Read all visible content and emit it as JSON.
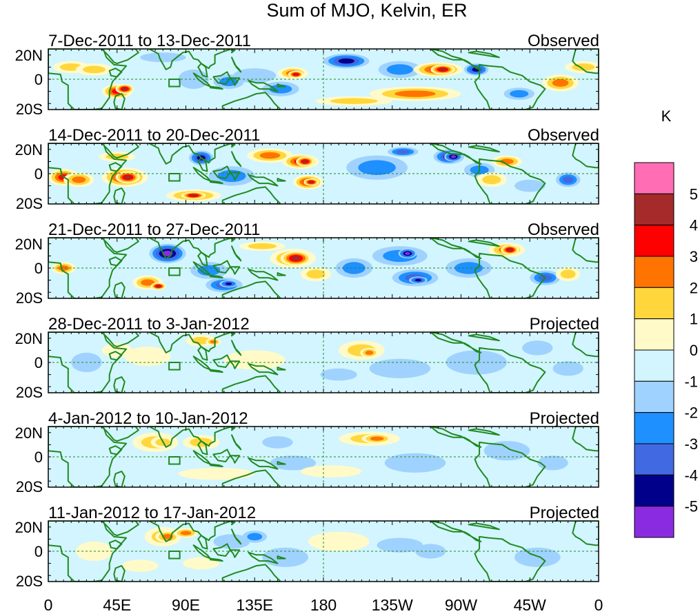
{
  "title": "Sum of MJO, Kelvin, ER",
  "colorbar": {
    "unit": "K",
    "bins": [
      {
        "color": "#ff6eb4"
      },
      {
        "color": "#a52a2a"
      },
      {
        "color": "#ff0000"
      },
      {
        "color": "#ff7400"
      },
      {
        "color": "#ffd73c"
      },
      {
        "color": "#fffac8"
      },
      {
        "color": "#d2f5ff"
      },
      {
        "color": "#a0d2ff"
      },
      {
        "color": "#1e90ff"
      },
      {
        "color": "#4169e1"
      },
      {
        "color": "#00008b"
      },
      {
        "color": "#8a2be2"
      }
    ],
    "labels": [
      "5",
      "4",
      "3",
      "2",
      "1",
      "0",
      "-1",
      "-2",
      "-3",
      "-4",
      "-5"
    ]
  },
  "y_ticks": [
    "20N",
    "0",
    "20S"
  ],
  "x_ticks": [
    "0",
    "45E",
    "90E",
    "135E",
    "180",
    "135W",
    "90W",
    "45W",
    "0"
  ],
  "panels": [
    {
      "date_range": "7-Dec-2011 to 13-Dec-2011",
      "status": "Observed"
    },
    {
      "date_range": "14-Dec-2011 to 20-Dec-2011",
      "status": "Observed"
    },
    {
      "date_range": "21-Dec-2011 to 27-Dec-2011",
      "status": "Observed"
    },
    {
      "date_range": "28-Dec-2011 to 3-Jan-2012",
      "status": "Projected"
    },
    {
      "date_range": "4-Jan-2012 to 10-Jan-2012",
      "status": "Projected"
    },
    {
      "date_range": "11-Jan-2012 to 17-Jan-2012",
      "status": "Projected"
    }
  ],
  "anomaly_fields": [
    {
      "blobs": [
        [
          15,
          10,
          12,
          5,
          2
        ],
        [
          30,
          8,
          12,
          5,
          2
        ],
        [
          45,
          -10,
          10,
          6,
          4
        ],
        [
          50,
          -8,
          6,
          4,
          5
        ],
        [
          95,
          0,
          10,
          8,
          -1
        ],
        [
          118,
          -2,
          10,
          6,
          -2
        ],
        [
          135,
          3,
          14,
          6,
          -1
        ],
        [
          152,
          -8,
          12,
          6,
          -2
        ],
        [
          160,
          5,
          10,
          5,
          3
        ],
        [
          162,
          4,
          5,
          3,
          5
        ],
        [
          195,
          15,
          15,
          6,
          -4
        ],
        [
          230,
          8,
          14,
          7,
          -2
        ],
        [
          240,
          -12,
          30,
          6,
          3
        ],
        [
          255,
          8,
          16,
          6,
          4
        ],
        [
          258,
          8,
          8,
          4,
          5
        ],
        [
          280,
          8,
          8,
          5,
          -4
        ],
        [
          335,
          -3,
          12,
          7,
          3
        ],
        [
          308,
          -12,
          10,
          5,
          -2
        ],
        [
          350,
          10,
          12,
          5,
          2
        ],
        [
          200,
          -18,
          25,
          4,
          2
        ],
        [
          75,
          18,
          15,
          4,
          -1
        ]
      ]
    },
    {
      "blobs": [
        [
          10,
          -3,
          10,
          7,
          4
        ],
        [
          20,
          -5,
          10,
          6,
          3
        ],
        [
          50,
          -3,
          15,
          8,
          4
        ],
        [
          52,
          -3,
          8,
          5,
          5
        ],
        [
          45,
          14,
          12,
          4,
          2
        ],
        [
          100,
          13,
          8,
          6,
          -4
        ],
        [
          120,
          -2,
          15,
          8,
          -2
        ],
        [
          145,
          15,
          15,
          6,
          3
        ],
        [
          165,
          10,
          12,
          6,
          4
        ],
        [
          168,
          10,
          6,
          4,
          5
        ],
        [
          170,
          -7,
          10,
          6,
          4
        ],
        [
          172,
          -7,
          5,
          3,
          5
        ],
        [
          95,
          -18,
          18,
          5,
          3
        ],
        [
          95,
          -18,
          8,
          3,
          5
        ],
        [
          215,
          5,
          20,
          10,
          -2
        ],
        [
          232,
          18,
          10,
          4,
          -3
        ],
        [
          262,
          14,
          10,
          6,
          -4
        ],
        [
          265,
          14,
          6,
          4,
          -5
        ],
        [
          282,
          3,
          10,
          6,
          -2
        ],
        [
          300,
          10,
          10,
          5,
          3
        ],
        [
          290,
          -5,
          10,
          6,
          2
        ],
        [
          340,
          -5,
          8,
          6,
          -3
        ],
        [
          315,
          -10,
          10,
          5,
          -1
        ]
      ]
    },
    {
      "blobs": [
        [
          78,
          12,
          12,
          8,
          -5
        ],
        [
          105,
          -2,
          12,
          7,
          -2
        ],
        [
          65,
          -12,
          10,
          6,
          3
        ],
        [
          72,
          -15,
          5,
          3,
          5
        ],
        [
          10,
          0,
          8,
          5,
          3
        ],
        [
          160,
          8,
          15,
          8,
          3
        ],
        [
          162,
          8,
          10,
          6,
          5
        ],
        [
          140,
          18,
          15,
          4,
          2
        ],
        [
          175,
          -5,
          10,
          6,
          2
        ],
        [
          115,
          -14,
          12,
          6,
          -3
        ],
        [
          118,
          -13,
          6,
          3,
          -4
        ],
        [
          230,
          10,
          18,
          8,
          -2
        ],
        [
          235,
          12,
          6,
          4,
          -5
        ],
        [
          240,
          -8,
          15,
          7,
          -3
        ],
        [
          242,
          -10,
          6,
          3,
          -4
        ],
        [
          275,
          0,
          15,
          8,
          -2
        ],
        [
          300,
          15,
          12,
          6,
          3
        ],
        [
          302,
          15,
          6,
          4,
          5
        ],
        [
          325,
          -8,
          10,
          6,
          -3
        ],
        [
          340,
          -5,
          8,
          6,
          2
        ],
        [
          200,
          0,
          12,
          8,
          -2
        ]
      ]
    },
    {
      "blobs": [
        [
          45,
          10,
          10,
          6,
          1
        ],
        [
          65,
          5,
          15,
          8,
          1
        ],
        [
          100,
          18,
          10,
          5,
          2
        ],
        [
          108,
          17,
          5,
          3,
          3
        ],
        [
          135,
          2,
          20,
          8,
          1
        ],
        [
          205,
          10,
          15,
          8,
          2
        ],
        [
          210,
          8,
          6,
          4,
          3
        ],
        [
          190,
          -10,
          12,
          5,
          -1
        ],
        [
          230,
          -5,
          20,
          8,
          -1
        ],
        [
          280,
          0,
          20,
          10,
          -1
        ],
        [
          320,
          12,
          10,
          6,
          -1
        ],
        [
          340,
          -5,
          10,
          6,
          -1
        ],
        [
          25,
          0,
          10,
          8,
          -1
        ]
      ]
    },
    {
      "blobs": [
        [
          70,
          12,
          15,
          8,
          2
        ],
        [
          75,
          12,
          8,
          5,
          2
        ],
        [
          100,
          12,
          12,
          6,
          2
        ],
        [
          150,
          12,
          10,
          5,
          -1
        ],
        [
          160,
          -5,
          15,
          6,
          -1
        ],
        [
          210,
          15,
          20,
          6,
          2
        ],
        [
          215,
          15,
          10,
          4,
          3
        ],
        [
          185,
          -12,
          20,
          5,
          1
        ],
        [
          110,
          -14,
          25,
          5,
          1
        ],
        [
          240,
          -5,
          20,
          8,
          -1
        ],
        [
          300,
          5,
          15,
          8,
          -1
        ],
        [
          330,
          -5,
          10,
          6,
          -1
        ]
      ]
    },
    {
      "blobs": [
        [
          75,
          12,
          12,
          8,
          2
        ],
        [
          78,
          12,
          8,
          5,
          3
        ],
        [
          90,
          15,
          8,
          4,
          3
        ],
        [
          120,
          8,
          12,
          6,
          -1
        ],
        [
          135,
          12,
          8,
          5,
          -2
        ],
        [
          155,
          -5,
          15,
          8,
          -1
        ],
        [
          190,
          8,
          20,
          8,
          1
        ],
        [
          230,
          5,
          15,
          6,
          -1
        ],
        [
          250,
          0,
          10,
          6,
          -1
        ],
        [
          320,
          -5,
          15,
          8,
          -1
        ],
        [
          30,
          0,
          12,
          8,
          1
        ],
        [
          60,
          -12,
          12,
          5,
          1
        ],
        [
          100,
          -10,
          12,
          5,
          1
        ]
      ]
    }
  ]
}
